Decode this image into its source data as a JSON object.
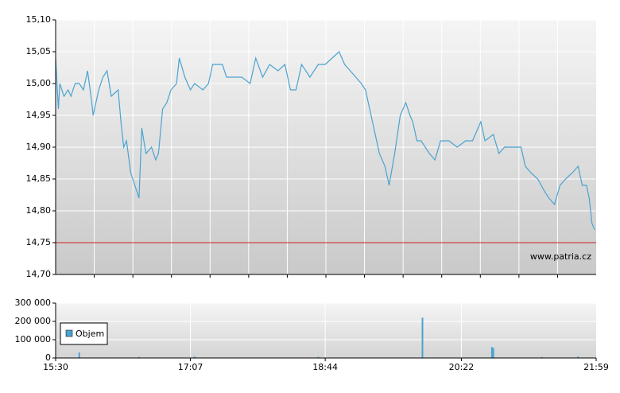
{
  "chart_data": [
    {
      "type": "line",
      "color": "#4aa3d0",
      "x": [
        "15:30",
        "15:32",
        "15:33",
        "15:36",
        "15:39",
        "15:41",
        "15:44",
        "15:47",
        "15:50",
        "15:53",
        "15:56",
        "15:57",
        "16:01",
        "16:04",
        "16:07",
        "16:10",
        "16:15",
        "16:17",
        "16:19",
        "16:21",
        "16:24",
        "16:27",
        "16:30",
        "16:32",
        "16:35",
        "16:39",
        "16:42",
        "16:44",
        "16:47",
        "16:50",
        "16:53",
        "16:57",
        "16:59",
        "17:03",
        "17:07",
        "17:10",
        "17:16",
        "17:20",
        "17:23",
        "17:30",
        "17:33",
        "17:39",
        "17:44",
        "17:50",
        "17:54",
        "17:59",
        "18:04",
        "18:10",
        "18:15",
        "18:19",
        "18:23",
        "18:27",
        "18:33",
        "18:39",
        "18:44",
        "18:49",
        "18:54",
        "18:58",
        "19:02",
        "19:06",
        "19:10",
        "19:13",
        "19:16",
        "19:19",
        "19:23",
        "19:27",
        "19:30",
        "19:34",
        "19:38",
        "19:42",
        "19:45",
        "19:47",
        "19:50",
        "19:53",
        "19:59",
        "20:03",
        "20:07",
        "20:13",
        "20:19",
        "20:25",
        "20:30",
        "20:36",
        "20:39",
        "20:45",
        "20:49",
        "20:53",
        "20:59",
        "21:05",
        "21:08",
        "21:12",
        "21:17",
        "21:22",
        "21:25",
        "21:29",
        "21:33",
        "21:37",
        "21:42",
        "21:46",
        "21:49",
        "21:52",
        "21:54",
        "21:56",
        "21:58"
      ],
      "values": [
        15.04,
        14.96,
        15.0,
        14.98,
        14.99,
        14.98,
        15.0,
        15.0,
        14.99,
        15.02,
        14.97,
        14.95,
        14.99,
        15.01,
        15.02,
        14.98,
        14.99,
        14.94,
        14.9,
        14.91,
        14.86,
        14.84,
        14.82,
        14.93,
        14.89,
        14.9,
        14.88,
        14.89,
        14.96,
        14.97,
        14.99,
        15.0,
        15.04,
        15.01,
        14.99,
        15.0,
        14.99,
        15.0,
        15.03,
        15.03,
        15.01,
        15.01,
        15.01,
        15.0,
        15.04,
        15.01,
        15.03,
        15.02,
        15.03,
        14.99,
        14.99,
        15.03,
        15.01,
        15.03,
        15.03,
        15.04,
        15.05,
        15.03,
        15.02,
        15.01,
        15.0,
        14.99,
        14.96,
        14.93,
        14.89,
        14.87,
        14.84,
        14.89,
        14.95,
        14.97,
        14.95,
        14.94,
        14.91,
        14.91,
        14.89,
        14.88,
        14.91,
        14.91,
        14.9,
        14.91,
        14.91,
        14.94,
        14.91,
        14.92,
        14.89,
        14.9,
        14.9,
        14.9,
        14.87,
        14.86,
        14.85,
        14.83,
        14.82,
        14.81,
        14.84,
        14.85,
        14.86,
        14.87,
        14.84,
        14.84,
        14.82,
        14.78,
        14.77
      ],
      "xlim": [
        "15:30",
        "21:59"
      ],
      "ylim": [
        14.7,
        15.1
      ],
      "yticks": [
        {
          "value": 14.7,
          "label": "14,70"
        },
        {
          "value": 14.75,
          "label": "14,75"
        },
        {
          "value": 14.8,
          "label": "14,80"
        },
        {
          "value": 14.85,
          "label": "14,85"
        },
        {
          "value": 14.9,
          "label": "14,90"
        },
        {
          "value": 14.95,
          "label": "14,95"
        },
        {
          "value": 15.0,
          "label": "15,00"
        },
        {
          "value": 15.05,
          "label": "15,05"
        },
        {
          "value": 15.1,
          "label": "15,10"
        }
      ],
      "reference_line": 14.75,
      "reference_color": "#cc2222",
      "grid": true,
      "watermark": "www.patria.cz"
    },
    {
      "type": "bar",
      "x": [
        "15:47",
        "16:30",
        "17:10",
        "18:39",
        "19:54",
        "20:44",
        "20:45",
        "21:20",
        "21:46"
      ],
      "series": [
        {
          "name": "Objem",
          "color": "#4aa3d0",
          "values": [
            30000,
            5000,
            8000,
            6000,
            220000,
            60000,
            55000,
            5000,
            8000
          ]
        }
      ],
      "xlim": [
        "15:30",
        "21:59"
      ],
      "xticks": [
        "15:30",
        "17:07",
        "18:44",
        "20:22",
        "21:59"
      ],
      "ylim": [
        0,
        300000
      ],
      "yticks": [
        {
          "value": 0,
          "label": "0"
        },
        {
          "value": 100000,
          "label": "100 000"
        },
        {
          "value": 200000,
          "label": "200 000"
        },
        {
          "value": 300000,
          "label": "300 000"
        }
      ],
      "grid": true,
      "legend": "upper-left"
    }
  ]
}
